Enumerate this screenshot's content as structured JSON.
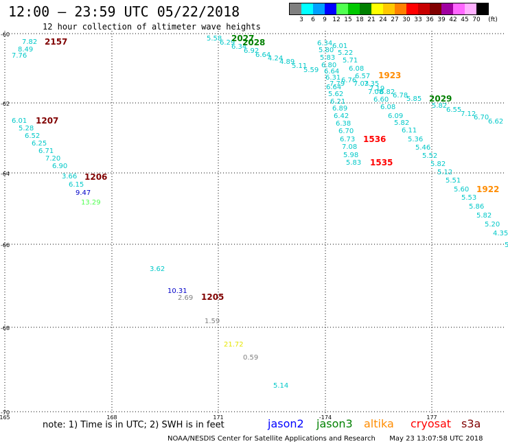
{
  "header": {
    "title": "12:00 – 23:59 UTC 05/22/2018",
    "subtitle": "12 hour collection of altimeter wave heights"
  },
  "scale": {
    "unit": "(ft)",
    "colors": [
      "#7f7f7f",
      "#00ffff",
      "#00a0ff",
      "#0000ff",
      "#50ff50",
      "#00c800",
      "#008000",
      "#ffff00",
      "#ffc800",
      "#ff8000",
      "#ff0000",
      "#c80000",
      "#800000",
      "#a000a0",
      "#ff66ff",
      "#ffb0ff",
      "#000000"
    ],
    "labels": [
      "3",
      "6",
      "9",
      "12",
      "15",
      "18",
      "21",
      "24",
      "27",
      "30",
      "33",
      "36",
      "39",
      "42",
      "45",
      "70"
    ]
  },
  "axes": {
    "lon_labels": [
      "165",
      "168",
      "171",
      "-174",
      "177"
    ],
    "lat_labels": [
      "-60",
      "-62",
      "-64",
      "-66",
      "-68",
      "-70"
    ]
  },
  "observations": [
    {
      "t": "7.82",
      "c": "#00c8c8"
    },
    {
      "t": "8.49",
      "c": "#00c8c8"
    },
    {
      "t": "7.76",
      "c": "#00c8c8"
    },
    {
      "t": "6.01",
      "c": "#00c8c8"
    },
    {
      "t": "5.28",
      "c": "#00c8c8"
    },
    {
      "t": "6.52",
      "c": "#00c8c8"
    },
    {
      "t": "6.25",
      "c": "#00c8c8"
    },
    {
      "t": "6.71",
      "c": "#00c8c8"
    },
    {
      "t": "7.20",
      "c": "#00c8c8"
    },
    {
      "t": "6.90",
      "c": "#00c8c8"
    },
    {
      "t": "3.66",
      "c": "#00c8c8"
    },
    {
      "t": "6.15",
      "c": "#00c8c8"
    },
    {
      "t": "9.47",
      "c": "#0000c8"
    },
    {
      "t": "13.29",
      "c": "#50ff50"
    },
    {
      "t": "3.62",
      "c": "#00c8c8"
    },
    {
      "t": "10.31",
      "c": "#0000c8"
    },
    {
      "t": "2.69",
      "c": "#808080"
    },
    {
      "t": "1.59",
      "c": "#808080"
    },
    {
      "t": "21.72",
      "c": "#e6e600"
    },
    {
      "t": "0.59",
      "c": "#808080"
    },
    {
      "t": "5.14",
      "c": "#00c8c8"
    },
    {
      "t": "5.58",
      "c": "#00c8c8"
    },
    {
      "t": "6.29",
      "c": "#00c8c8"
    },
    {
      "t": "6.34",
      "c": "#00c8c8"
    },
    {
      "t": "6.92",
      "c": "#00c8c8"
    },
    {
      "t": "6.64",
      "c": "#00c8c8"
    },
    {
      "t": "4.24",
      "c": "#00c8c8"
    },
    {
      "t": "4.89",
      "c": "#00c8c8"
    },
    {
      "t": "5.11",
      "c": "#00c8c8"
    },
    {
      "t": "5.59",
      "c": "#00c8c8"
    },
    {
      "t": "6.34",
      "c": "#00c8c8"
    },
    {
      "t": "6.01",
      "c": "#00c8c8"
    },
    {
      "t": "5.80",
      "c": "#00c8c8"
    },
    {
      "t": "5.22",
      "c": "#00c8c8"
    },
    {
      "t": "5.83",
      "c": "#00c8c8"
    },
    {
      "t": "5.71",
      "c": "#00c8c8"
    },
    {
      "t": "6.80",
      "c": "#00c8c8"
    },
    {
      "t": "6.08",
      "c": "#00c8c8"
    },
    {
      "t": "6.64",
      "c": "#00c8c8"
    },
    {
      "t": "6.57",
      "c": "#00c8c8"
    },
    {
      "t": "6.31",
      "c": "#00c8c8"
    },
    {
      "t": "6.76",
      "c": "#00c8c8"
    },
    {
      "t": "7.03",
      "c": "#00c8c8"
    },
    {
      "t": "7.35",
      "c": "#00c8c8"
    },
    {
      "t": "7.79",
      "c": "#00c8c8"
    },
    {
      "t": "7.19",
      "c": "#00c8c8"
    },
    {
      "t": "6.64",
      "c": "#00c8c8"
    },
    {
      "t": "7.08",
      "c": "#00c8c8"
    },
    {
      "t": "6.82",
      "c": "#00c8c8"
    },
    {
      "t": "5.62",
      "c": "#00c8c8"
    },
    {
      "t": "6.60",
      "c": "#00c8c8"
    },
    {
      "t": "6.78",
      "c": "#00c8c8"
    },
    {
      "t": "6.21",
      "c": "#00c8c8"
    },
    {
      "t": "5.85",
      "c": "#00c8c8"
    },
    {
      "t": "5.82",
      "c": "#00c8c8"
    },
    {
      "t": "6.55",
      "c": "#00c8c8"
    },
    {
      "t": "6.89",
      "c": "#00c8c8"
    },
    {
      "t": "6.08",
      "c": "#00c8c8"
    },
    {
      "t": "7.12",
      "c": "#00c8c8"
    },
    {
      "t": "6.70",
      "c": "#00c8c8"
    },
    {
      "t": "6.62",
      "c": "#00c8c8"
    },
    {
      "t": "6.42",
      "c": "#00c8c8"
    },
    {
      "t": "6.09",
      "c": "#00c8c8"
    },
    {
      "t": "6.38",
      "c": "#00c8c8"
    },
    {
      "t": "5.82",
      "c": "#00c8c8"
    },
    {
      "t": "6.70",
      "c": "#00c8c8"
    },
    {
      "t": "6.11",
      "c": "#00c8c8"
    },
    {
      "t": "6.73",
      "c": "#00c8c8"
    },
    {
      "t": "5.36",
      "c": "#00c8c8"
    },
    {
      "t": "7.08",
      "c": "#00c8c8"
    },
    {
      "t": "5.46",
      "c": "#00c8c8"
    },
    {
      "t": "5.98",
      "c": "#00c8c8"
    },
    {
      "t": "5.52",
      "c": "#00c8c8"
    },
    {
      "t": "5.83",
      "c": "#00c8c8"
    },
    {
      "t": "5.82",
      "c": "#00c8c8"
    },
    {
      "t": "5.12",
      "c": "#00c8c8"
    },
    {
      "t": "5.51",
      "c": "#00c8c8"
    },
    {
      "t": "5.60",
      "c": "#00c8c8"
    },
    {
      "t": "5.53",
      "c": "#00c8c8"
    },
    {
      "t": "5.86",
      "c": "#00c8c8"
    },
    {
      "t": "5.82",
      "c": "#00c8c8"
    },
    {
      "t": "5.20",
      "c": "#00c8c8"
    },
    {
      "t": "4.35",
      "c": "#00c8c8"
    },
    {
      "t": "5",
      "c": "#00c8c8"
    }
  ],
  "time_labels": [
    {
      "t": "2157",
      "c": "#800000"
    },
    {
      "t": "1207",
      "c": "#800000"
    },
    {
      "t": "1206",
      "c": "#800000"
    },
    {
      "t": "1205",
      "c": "#800000"
    },
    {
      "t": "2027",
      "c": "#008000"
    },
    {
      "t": "2028",
      "c": "#008000"
    },
    {
      "t": "1923",
      "c": "#ff8c00"
    },
    {
      "t": "2029",
      "c": "#008000"
    },
    {
      "t": "1536",
      "c": "#ff0000"
    },
    {
      "t": "1535",
      "c": "#ff0000"
    },
    {
      "t": "1922",
      "c": "#ff8c00"
    }
  ],
  "footer": {
    "note": "note:  1) Time is in UTC;  2) SWH is in feet",
    "legend": [
      {
        "label": "jason2",
        "color": "#0000ff"
      },
      {
        "label": "jason3",
        "color": "#008000"
      },
      {
        "label": "altika",
        "color": "#ff8c00"
      },
      {
        "label": "cryosat",
        "color": "#ff0000"
      },
      {
        "label": "s3a",
        "color": "#800000"
      }
    ],
    "credit": "NOAA/NESDIS Center for Satellite Applications and Research",
    "timestamp": "May 23 13:07:58 UTC 2018"
  }
}
